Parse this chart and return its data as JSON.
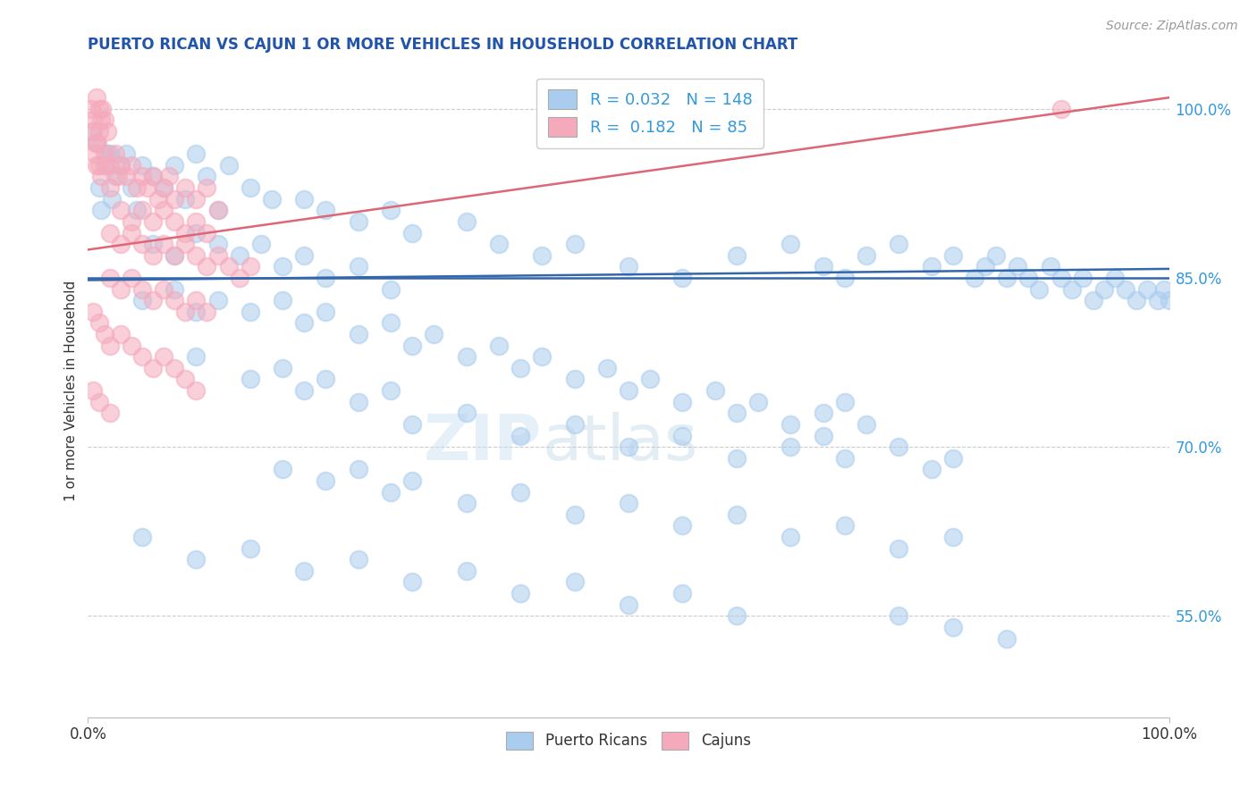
{
  "title": "PUERTO RICAN VS CAJUN 1 OR MORE VEHICLES IN HOUSEHOLD CORRELATION CHART",
  "title_color": "#2255aa",
  "source_text": "Source: ZipAtlas.com",
  "ylabel": "1 or more Vehicles in Household",
  "xlim": [
    0.0,
    100.0
  ],
  "ylim": [
    46.0,
    104.0
  ],
  "ytick_labels": [
    "55.0%",
    "70.0%",
    "85.0%",
    "100.0%"
  ],
  "ytick_values": [
    55.0,
    70.0,
    85.0,
    100.0
  ],
  "xtick_labels": [
    "0.0%",
    "100.0%"
  ],
  "xtick_values": [
    0.0,
    100.0
  ],
  "blue_hline_y": 85.0,
  "blue_dot_color": "#aaccee",
  "pink_dot_color": "#f5aabc",
  "blue_line_color": "#3366aa",
  "pink_line_color": "#dd6677",
  "right_label_color": "#3399dd",
  "legend_R_blue": "0.032",
  "legend_N_blue": "148",
  "legend_R_pink": "0.182",
  "legend_N_pink": "85",
  "watermark_zip": "ZIP",
  "watermark_atlas": "atlas",
  "blue_trend_x": [
    0.0,
    100.0
  ],
  "blue_trend_y": [
    84.8,
    85.8
  ],
  "pink_trend_x": [
    0.0,
    100.0
  ],
  "pink_trend_y": [
    87.5,
    101.0
  ],
  "blue_dots": [
    [
      1.5,
      95
    ],
    [
      2.0,
      96
    ],
    [
      1.0,
      93
    ],
    [
      0.8,
      97
    ],
    [
      2.5,
      94
    ],
    [
      3.0,
      95
    ],
    [
      1.2,
      91
    ],
    [
      0.5,
      98
    ],
    [
      1.8,
      96
    ],
    [
      2.2,
      92
    ],
    [
      4.0,
      93
    ],
    [
      3.5,
      96
    ],
    [
      5.0,
      95
    ],
    [
      6.0,
      94
    ],
    [
      4.5,
      91
    ],
    [
      7.0,
      93
    ],
    [
      8.0,
      95
    ],
    [
      9.0,
      92
    ],
    [
      10.0,
      96
    ],
    [
      11.0,
      94
    ],
    [
      12.0,
      91
    ],
    [
      13.0,
      95
    ],
    [
      15.0,
      93
    ],
    [
      17.0,
      92
    ],
    [
      20.0,
      92
    ],
    [
      22.0,
      91
    ],
    [
      25.0,
      90
    ],
    [
      28.0,
      91
    ],
    [
      30.0,
      89
    ],
    [
      35.0,
      90
    ],
    [
      38.0,
      88
    ],
    [
      42.0,
      87
    ],
    [
      45.0,
      88
    ],
    [
      50.0,
      86
    ],
    [
      55.0,
      85
    ],
    [
      60.0,
      87
    ],
    [
      65.0,
      88
    ],
    [
      68.0,
      86
    ],
    [
      70.0,
      85
    ],
    [
      72.0,
      87
    ],
    [
      75.0,
      88
    ],
    [
      78.0,
      86
    ],
    [
      80.0,
      87
    ],
    [
      82.0,
      85
    ],
    [
      83.0,
      86
    ],
    [
      84.0,
      87
    ],
    [
      85.0,
      85
    ],
    [
      86.0,
      86
    ],
    [
      87.0,
      85
    ],
    [
      88.0,
      84
    ],
    [
      89.0,
      86
    ],
    [
      90.0,
      85
    ],
    [
      91.0,
      84
    ],
    [
      92.0,
      85
    ],
    [
      93.0,
      83
    ],
    [
      94.0,
      84
    ],
    [
      95.0,
      85
    ],
    [
      96.0,
      84
    ],
    [
      97.0,
      83
    ],
    [
      98.0,
      84
    ],
    [
      99.0,
      83
    ],
    [
      99.5,
      84
    ],
    [
      100.0,
      83
    ],
    [
      6.0,
      88
    ],
    [
      8.0,
      87
    ],
    [
      10.0,
      89
    ],
    [
      12.0,
      88
    ],
    [
      14.0,
      87
    ],
    [
      16.0,
      88
    ],
    [
      18.0,
      86
    ],
    [
      20.0,
      87
    ],
    [
      22.0,
      85
    ],
    [
      25.0,
      86
    ],
    [
      28.0,
      84
    ],
    [
      5.0,
      83
    ],
    [
      8.0,
      84
    ],
    [
      10.0,
      82
    ],
    [
      12.0,
      83
    ],
    [
      15.0,
      82
    ],
    [
      18.0,
      83
    ],
    [
      20.0,
      81
    ],
    [
      22.0,
      82
    ],
    [
      25.0,
      80
    ],
    [
      28.0,
      81
    ],
    [
      30.0,
      79
    ],
    [
      32.0,
      80
    ],
    [
      35.0,
      78
    ],
    [
      38.0,
      79
    ],
    [
      40.0,
      77
    ],
    [
      42.0,
      78
    ],
    [
      45.0,
      76
    ],
    [
      48.0,
      77
    ],
    [
      50.0,
      75
    ],
    [
      52.0,
      76
    ],
    [
      55.0,
      74
    ],
    [
      58.0,
      75
    ],
    [
      60.0,
      73
    ],
    [
      62.0,
      74
    ],
    [
      65.0,
      72
    ],
    [
      68.0,
      73
    ],
    [
      70.0,
      74
    ],
    [
      72.0,
      72
    ],
    [
      10.0,
      78
    ],
    [
      15.0,
      76
    ],
    [
      18.0,
      77
    ],
    [
      20.0,
      75
    ],
    [
      22.0,
      76
    ],
    [
      25.0,
      74
    ],
    [
      28.0,
      75
    ],
    [
      30.0,
      72
    ],
    [
      35.0,
      73
    ],
    [
      40.0,
      71
    ],
    [
      45.0,
      72
    ],
    [
      50.0,
      70
    ],
    [
      55.0,
      71
    ],
    [
      60.0,
      69
    ],
    [
      65.0,
      70
    ],
    [
      68.0,
      71
    ],
    [
      70.0,
      69
    ],
    [
      75.0,
      70
    ],
    [
      78.0,
      68
    ],
    [
      80.0,
      69
    ],
    [
      18.0,
      68
    ],
    [
      22.0,
      67
    ],
    [
      25.0,
      68
    ],
    [
      28.0,
      66
    ],
    [
      30.0,
      67
    ],
    [
      35.0,
      65
    ],
    [
      40.0,
      66
    ],
    [
      45.0,
      64
    ],
    [
      50.0,
      65
    ],
    [
      55.0,
      63
    ],
    [
      60.0,
      64
    ],
    [
      65.0,
      62
    ],
    [
      70.0,
      63
    ],
    [
      75.0,
      61
    ],
    [
      80.0,
      62
    ],
    [
      5.0,
      62
    ],
    [
      10.0,
      60
    ],
    [
      15.0,
      61
    ],
    [
      20.0,
      59
    ],
    [
      25.0,
      60
    ],
    [
      30.0,
      58
    ],
    [
      35.0,
      59
    ],
    [
      40.0,
      57
    ],
    [
      45.0,
      58
    ],
    [
      50.0,
      56
    ],
    [
      55.0,
      57
    ],
    [
      60.0,
      55
    ],
    [
      75.0,
      55
    ],
    [
      80.0,
      54
    ],
    [
      85.0,
      53
    ]
  ],
  "pink_dots": [
    [
      0.3,
      100
    ],
    [
      0.5,
      99
    ],
    [
      0.8,
      101
    ],
    [
      1.0,
      100
    ],
    [
      1.2,
      99
    ],
    [
      0.4,
      98
    ],
    [
      0.7,
      97
    ],
    [
      1.5,
      99
    ],
    [
      0.6,
      96
    ],
    [
      1.0,
      98
    ],
    [
      1.3,
      100
    ],
    [
      0.9,
      97
    ],
    [
      1.8,
      98
    ],
    [
      1.0,
      95
    ],
    [
      1.5,
      96
    ],
    [
      2.0,
      95
    ],
    [
      1.2,
      94
    ],
    [
      0.8,
      95
    ],
    [
      2.5,
      96
    ],
    [
      2.0,
      93
    ],
    [
      1.7,
      95
    ],
    [
      2.8,
      94
    ],
    [
      3.0,
      95
    ],
    [
      3.5,
      94
    ],
    [
      4.0,
      95
    ],
    [
      4.5,
      93
    ],
    [
      5.0,
      94
    ],
    [
      5.5,
      93
    ],
    [
      6.0,
      94
    ],
    [
      6.5,
      92
    ],
    [
      7.0,
      93
    ],
    [
      7.5,
      94
    ],
    [
      8.0,
      92
    ],
    [
      9.0,
      93
    ],
    [
      10.0,
      92
    ],
    [
      11.0,
      93
    ],
    [
      12.0,
      91
    ],
    [
      3.0,
      91
    ],
    [
      4.0,
      90
    ],
    [
      5.0,
      91
    ],
    [
      6.0,
      90
    ],
    [
      7.0,
      91
    ],
    [
      8.0,
      90
    ],
    [
      9.0,
      89
    ],
    [
      10.0,
      90
    ],
    [
      11.0,
      89
    ],
    [
      2.0,
      89
    ],
    [
      3.0,
      88
    ],
    [
      4.0,
      89
    ],
    [
      5.0,
      88
    ],
    [
      6.0,
      87
    ],
    [
      7.0,
      88
    ],
    [
      8.0,
      87
    ],
    [
      9.0,
      88
    ],
    [
      10.0,
      87
    ],
    [
      11.0,
      86
    ],
    [
      12.0,
      87
    ],
    [
      13.0,
      86
    ],
    [
      14.0,
      85
    ],
    [
      15.0,
      86
    ],
    [
      2.0,
      85
    ],
    [
      3.0,
      84
    ],
    [
      4.0,
      85
    ],
    [
      5.0,
      84
    ],
    [
      6.0,
      83
    ],
    [
      7.0,
      84
    ],
    [
      8.0,
      83
    ],
    [
      9.0,
      82
    ],
    [
      10.0,
      83
    ],
    [
      11.0,
      82
    ],
    [
      0.5,
      82
    ],
    [
      1.0,
      81
    ],
    [
      1.5,
      80
    ],
    [
      2.0,
      79
    ],
    [
      3.0,
      80
    ],
    [
      4.0,
      79
    ],
    [
      5.0,
      78
    ],
    [
      6.0,
      77
    ],
    [
      7.0,
      78
    ],
    [
      8.0,
      77
    ],
    [
      9.0,
      76
    ],
    [
      10.0,
      75
    ],
    [
      0.5,
      75
    ],
    [
      1.0,
      74
    ],
    [
      2.0,
      73
    ],
    [
      90.0,
      100
    ]
  ]
}
